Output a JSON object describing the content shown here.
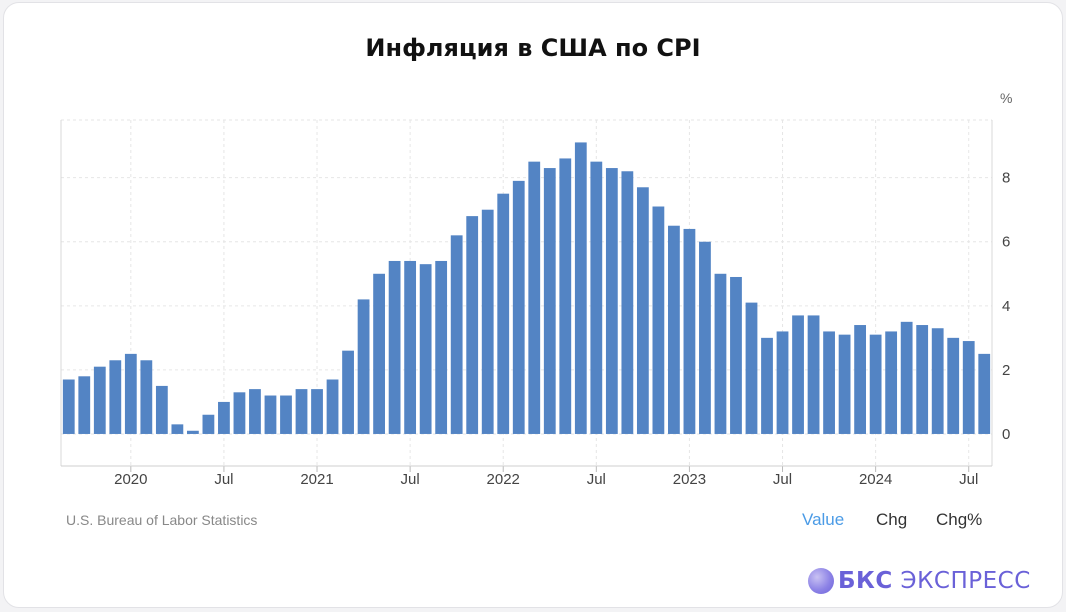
{
  "title": "Инфляция в США по CPI",
  "source": "U.S. Bureau of Labor Statistics",
  "tabs": [
    {
      "label": "Value",
      "active": true
    },
    {
      "label": "Chg",
      "active": false
    },
    {
      "label": "Chg%",
      "active": false
    }
  ],
  "brand": {
    "bold": "БКС",
    "light": "ЭКСПРЕСС"
  },
  "colors": {
    "bar": "#5384c4",
    "accent": "#4b9be6",
    "brand": "#6a61d8"
  },
  "chart_data": {
    "type": "bar",
    "unit_label": "%",
    "ylim": [
      -1,
      9.8
    ],
    "y_ticks": [
      0,
      2,
      4,
      6,
      8
    ],
    "x_tick_labels": [
      {
        "label": "2020",
        "index": 4
      },
      {
        "label": "Jul",
        "index": 10
      },
      {
        "label": "2021",
        "index": 16
      },
      {
        "label": "Jul",
        "index": 22
      },
      {
        "label": "2022",
        "index": 28
      },
      {
        "label": "Jul",
        "index": 34
      },
      {
        "label": "2023",
        "index": 40
      },
      {
        "label": "Jul",
        "index": 46
      },
      {
        "label": "2024",
        "index": 52
      },
      {
        "label": "Jul",
        "index": 58
      }
    ],
    "categories": [
      "2019-09",
      "2019-10",
      "2019-11",
      "2019-12",
      "2020-01",
      "2020-02",
      "2020-03",
      "2020-04",
      "2020-05",
      "2020-06",
      "2020-07",
      "2020-08",
      "2020-09",
      "2020-10",
      "2020-11",
      "2020-12",
      "2021-01",
      "2021-02",
      "2021-03",
      "2021-04",
      "2021-05",
      "2021-06",
      "2021-07",
      "2021-08",
      "2021-09",
      "2021-10",
      "2021-11",
      "2021-12",
      "2022-01",
      "2022-02",
      "2022-03",
      "2022-04",
      "2022-05",
      "2022-06",
      "2022-07",
      "2022-08",
      "2022-09",
      "2022-10",
      "2022-11",
      "2022-12",
      "2023-01",
      "2023-02",
      "2023-03",
      "2023-04",
      "2023-05",
      "2023-06",
      "2023-07",
      "2023-08",
      "2023-09",
      "2023-10",
      "2023-11",
      "2023-12",
      "2024-01",
      "2024-02",
      "2024-03",
      "2024-04",
      "2024-05",
      "2024-06",
      "2024-07",
      "2024-08"
    ],
    "values": [
      1.7,
      1.8,
      2.1,
      2.3,
      2.5,
      2.3,
      1.5,
      0.3,
      0.1,
      0.6,
      1.0,
      1.3,
      1.4,
      1.2,
      1.2,
      1.4,
      1.4,
      1.7,
      2.6,
      4.2,
      5.0,
      5.4,
      5.4,
      5.3,
      5.4,
      6.2,
      6.8,
      7.0,
      7.5,
      7.9,
      8.5,
      8.3,
      8.6,
      9.1,
      8.5,
      8.3,
      8.2,
      7.7,
      7.1,
      6.5,
      6.4,
      6.0,
      5.0,
      4.9,
      4.1,
      3.0,
      3.2,
      3.7,
      3.7,
      3.2,
      3.1,
      3.4,
      3.1,
      3.2,
      3.5,
      3.4,
      3.3,
      3.0,
      2.9,
      2.5
    ],
    "grid": true,
    "legend": "none"
  }
}
